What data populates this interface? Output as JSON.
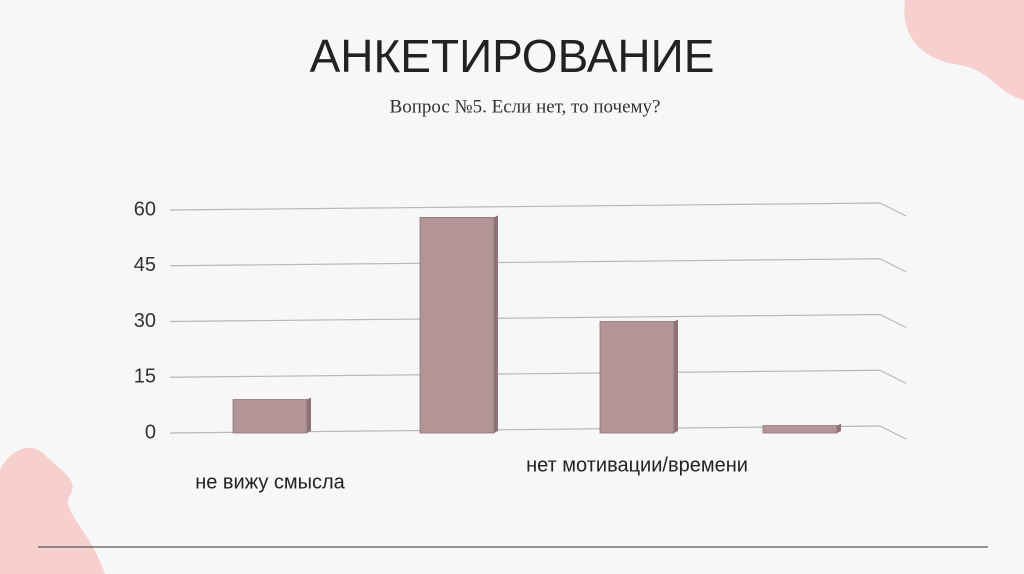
{
  "chart_data": {
    "type": "bar",
    "title": "АНКЕТИРОВАНИЕ",
    "subtitle": "Вопрос №5. Если нет, то почему?",
    "categories": [
      "не вижу смысла",
      null,
      "нет мотивации/времени",
      null
    ],
    "values": [
      9,
      58,
      30,
      2
    ],
    "color": "#b39597",
    "ylim": [
      0,
      60
    ],
    "yticks": [
      0,
      15,
      30,
      45,
      60
    ],
    "grid": true
  }
}
